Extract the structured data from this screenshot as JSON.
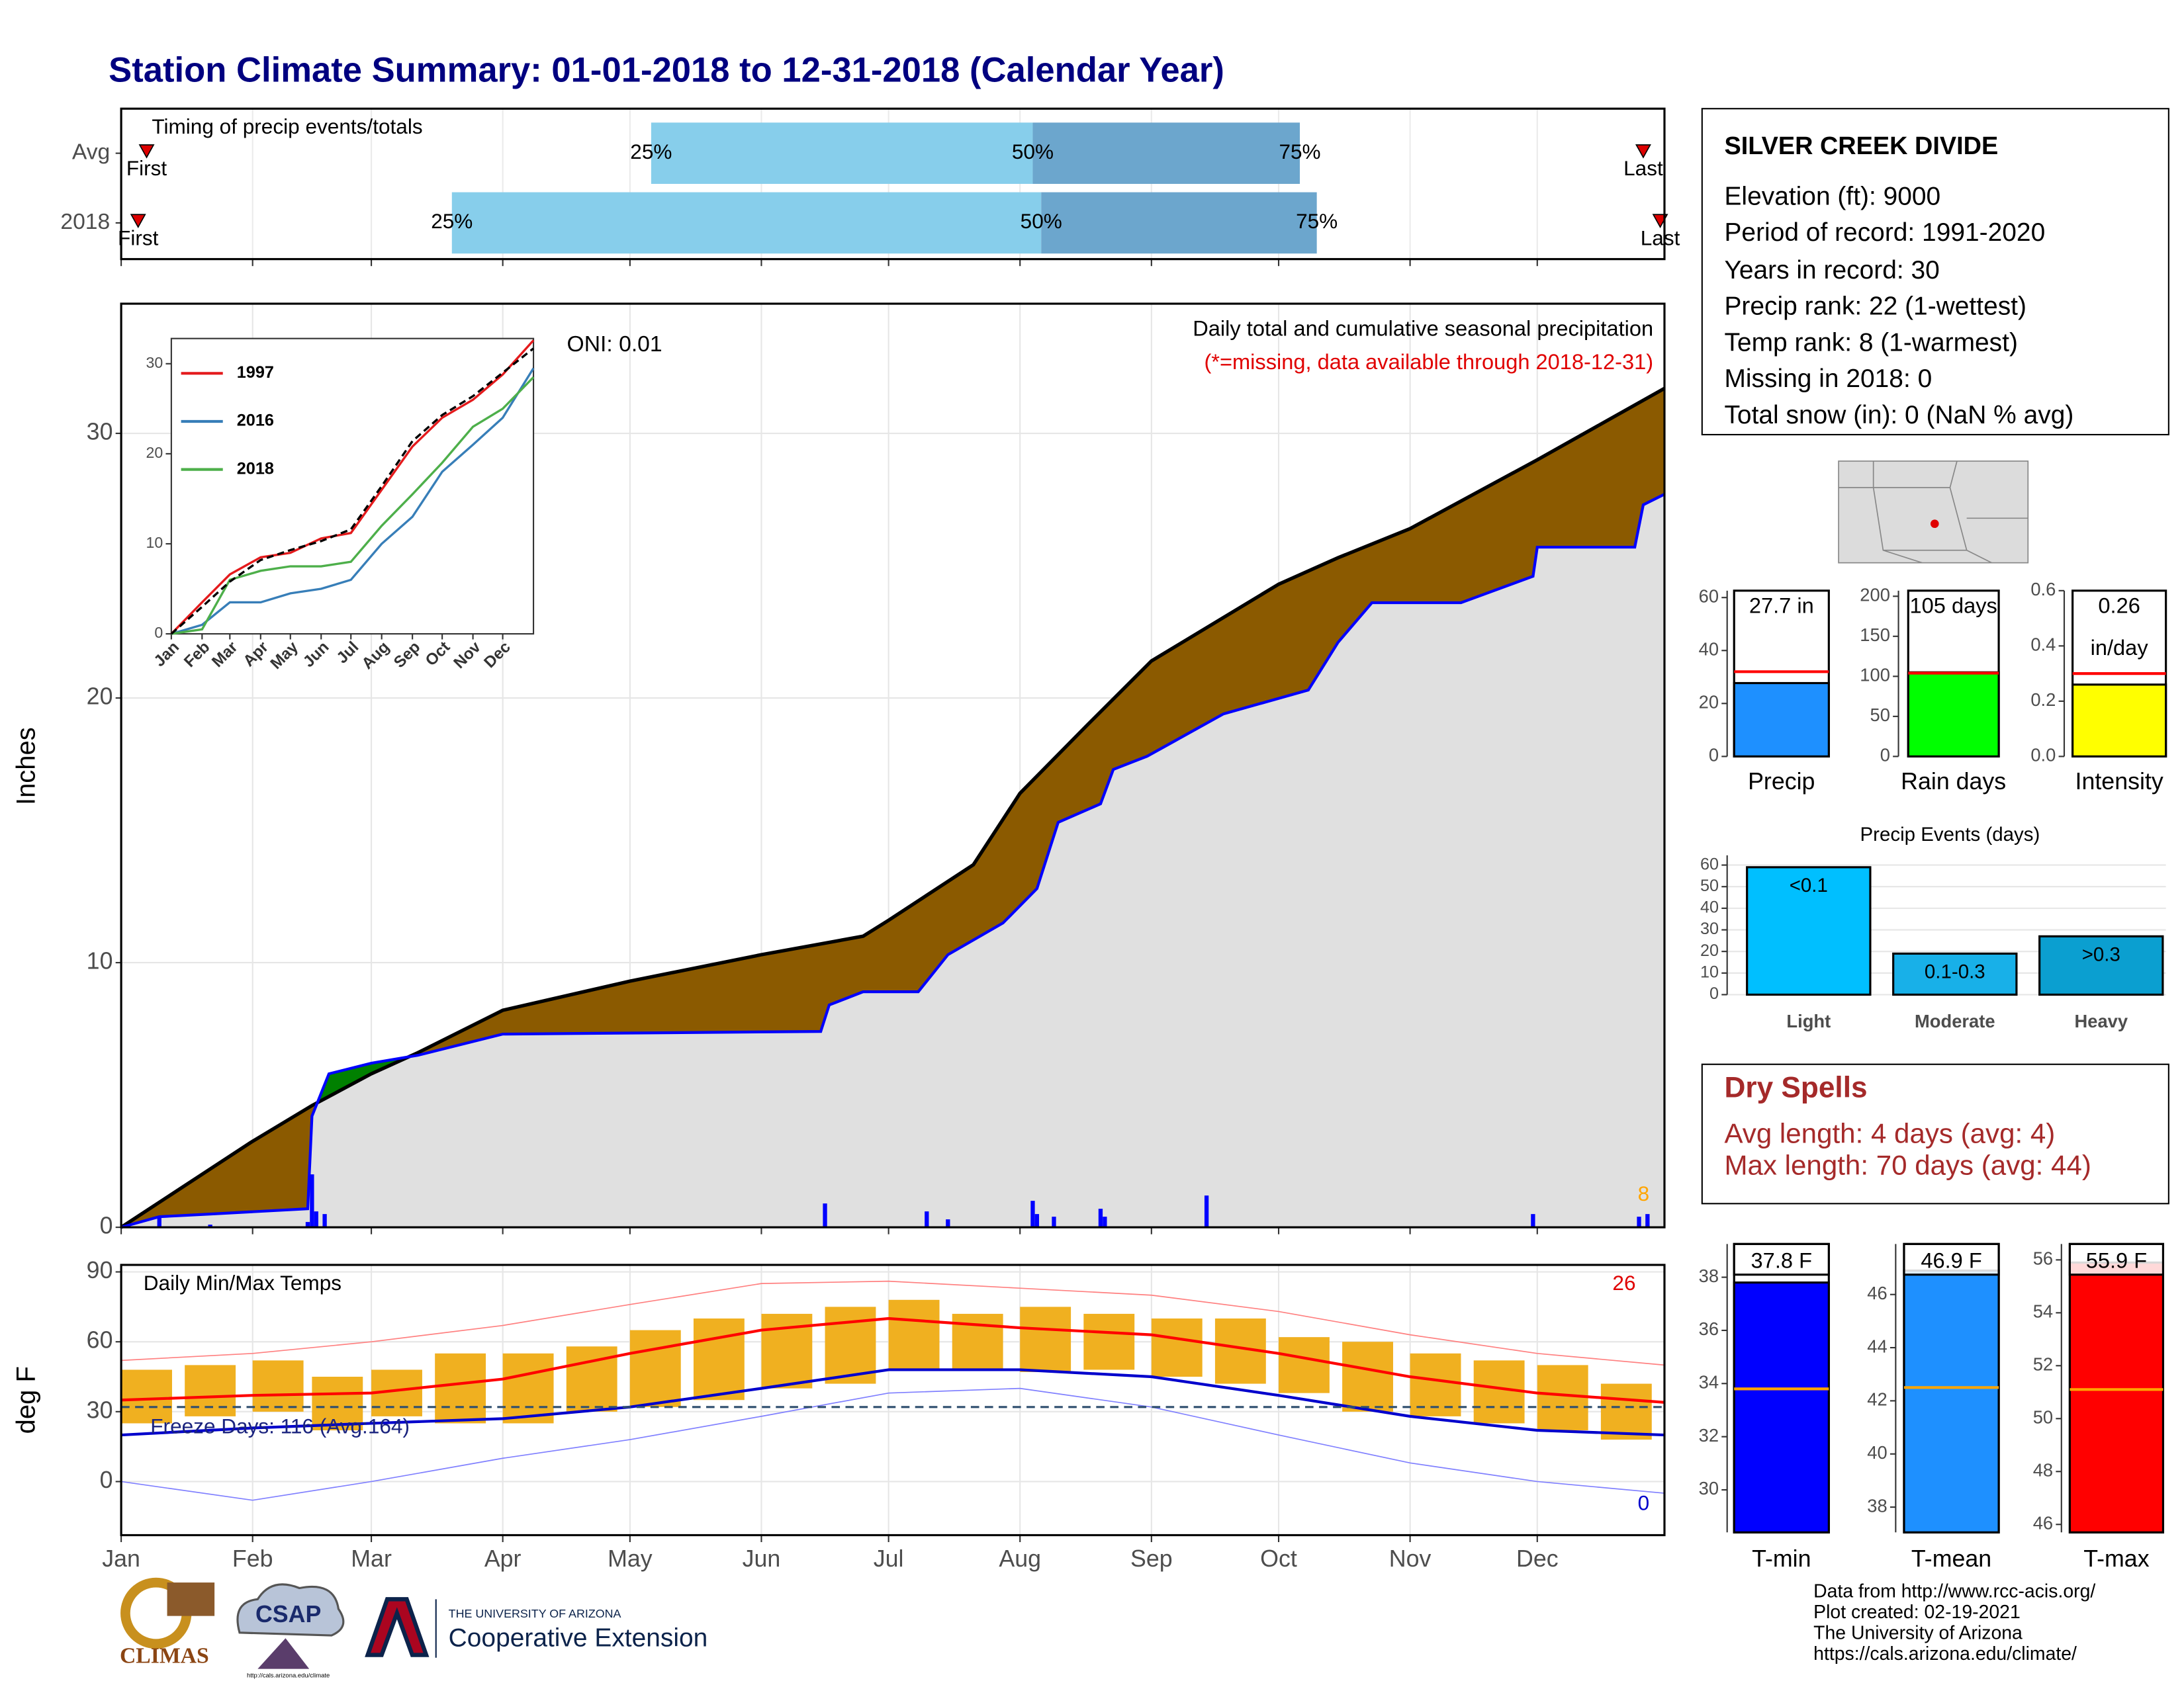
{
  "title": "Station Climate Summary: 01-01-2018 to 12-31-2018 (Calendar Year)",
  "station": {
    "name": "SILVER CREEK DIVIDE",
    "lines": [
      "Elevation (ft): 9000",
      "Period of record: 1991-2020",
      "Years in record: 30",
      "Precip rank: 22 (1-wettest)",
      "Temp rank: 8 (1-warmest)",
      "Missing in 2018: 0",
      "Total snow (in): 0 (NaN % avg)"
    ]
  },
  "dry_spells": {
    "title": "Dry Spells",
    "lines": [
      "Avg length: 4 days (avg: 4)",
      "Max length: 70 days (avg: 44)"
    ]
  },
  "footer": [
    "Data from http://www.rcc-acis.org/",
    "Plot created: 02-19-2021",
    "The University of Arizona",
    "https://cals.arizona.edu/climate/"
  ],
  "logos": {
    "climas": "CLIMAS",
    "csap": "CSAP",
    "csap_url": "http://cals.arizona.edu/climate",
    "ua": "THE UNIVERSITY OF ARIZONA",
    "coop": "Cooperative Extension"
  },
  "chart_data": [
    {
      "type": "timeline",
      "title": "Timing of precip events/totals",
      "markers": [
        "First",
        "25%",
        "50%",
        "75%",
        "Last"
      ],
      "colors": [
        "#87ceeb",
        "#6ca6cd"
      ],
      "marker_color": "#dd0000",
      "series": [
        {
          "name": "Avg",
          "values": [
            6,
            125,
            215,
            278,
            359
          ]
        },
        {
          "name": "2018",
          "values": [
            4,
            78,
            217,
            282,
            363
          ]
        }
      ],
      "xlim": [
        0,
        364
      ],
      "xticks": [
        0,
        31,
        59,
        90,
        120,
        151,
        181,
        212,
        243,
        273,
        304,
        334
      ]
    },
    {
      "type": "area",
      "y_label": "Inches",
      "annotations": [
        "ONI: 0.01",
        "Daily total and cumulative seasonal precipitation",
        "(*=missing, data available through 2018-12-31)",
        "8"
      ],
      "xlim": [
        0,
        364
      ],
      "xticks": [
        0,
        31,
        59,
        90,
        120,
        151,
        181,
        212,
        243,
        273,
        304,
        334
      ],
      "ylim": [
        0,
        34.9
      ],
      "yticks": [
        0,
        10,
        20,
        30
      ],
      "grid": true,
      "above_color": "#8b5a00",
      "below_color": "#008000",
      "fill_color": "#e0e0e0",
      "series": [
        {
          "color": "#000000",
          "x": [
            0,
            30.5,
            45,
            59,
            70,
            90,
            120,
            151,
            175,
            181,
            201,
            212,
            228,
            243,
            273,
            287,
            304,
            334,
            364
          ],
          "values": [
            0,
            3.2,
            4.6,
            5.8,
            6.6,
            8.2,
            9.3,
            10.3,
            11.0,
            11.6,
            13.7,
            16.4,
            19.0,
            21.4,
            24.3,
            25.3,
            26.4,
            29.0,
            31.7
          ]
        },
        {
          "color": "#0000ff",
          "x": [
            0,
            9,
            21,
            44,
            45,
            49,
            59,
            70,
            90,
            165,
            167,
            175,
            188,
            195,
            208,
            216,
            221,
            231,
            234,
            242,
            260,
            280,
            287,
            295,
            316,
            333,
            334,
            357,
            359,
            364
          ],
          "values": [
            0,
            0.4,
            0.5,
            0.7,
            4.2,
            5.8,
            6.2,
            6.5,
            7.3,
            7.4,
            8.4,
            8.9,
            8.9,
            10.3,
            11.5,
            12.8,
            15.3,
            16.0,
            17.3,
            17.8,
            19.4,
            20.3,
            22.1,
            23.6,
            23.6,
            24.6,
            25.7,
            25.7,
            27.3,
            27.7
          ]
        }
      ],
      "daily": {
        "color": "#0000ff",
        "x": [
          9,
          21,
          44,
          45,
          46,
          48,
          166,
          190,
          195,
          215,
          216,
          220,
          231,
          232,
          256,
          333,
          358,
          360
        ],
        "values": [
          0.4,
          0.1,
          0.2,
          2.0,
          0.6,
          0.5,
          0.9,
          0.6,
          0.3,
          1.0,
          0.5,
          0.4,
          0.7,
          0.4,
          1.2,
          0.5,
          0.4,
          0.5
        ]
      }
    },
    {
      "type": "line",
      "xlim": [
        0,
        365
      ],
      "xticks": [
        {
          "value": 0,
          "label": "Jan"
        },
        {
          "value": 31,
          "label": "Feb"
        },
        {
          "value": 59,
          "label": "Mar"
        },
        {
          "value": 90,
          "label": "Apr"
        },
        {
          "value": 120,
          "label": "May"
        },
        {
          "value": 151,
          "label": "Jun"
        },
        {
          "value": 181,
          "label": "Jul"
        },
        {
          "value": 212,
          "label": "Aug"
        },
        {
          "value": 243,
          "label": "Sep"
        },
        {
          "value": 273,
          "label": "Oct"
        },
        {
          "value": 304,
          "label": "Nov"
        },
        {
          "value": 334,
          "label": "Dec"
        }
      ],
      "ylim": [
        0,
        32.8
      ],
      "yticks": [
        0,
        10,
        20,
        30
      ],
      "x": [
        0,
        31,
        59,
        90,
        120,
        151,
        181,
        212,
        243,
        273,
        304,
        334,
        365
      ],
      "series": [
        {
          "name": "1997",
          "color": "#e41a1c",
          "values": [
            0,
            3.5,
            6.6,
            8.5,
            9,
            10.6,
            11.2,
            16,
            20.8,
            24,
            26,
            28.8,
            32.6
          ]
        },
        {
          "name": "2016",
          "color": "#377eb8",
          "values": [
            0,
            1,
            3.5,
            3.5,
            4.5,
            5,
            6,
            10,
            13,
            18,
            21,
            24,
            29.5
          ]
        },
        {
          "name": "2018",
          "color": "#4daf4a",
          "values": [
            0,
            0.5,
            6,
            7,
            7.5,
            7.5,
            8,
            12,
            15.5,
            19,
            23,
            25,
            28.5
          ]
        },
        {
          "color": "#000000",
          "dashed": true,
          "values": [
            0,
            3,
            5.8,
            8.2,
            9.3,
            10.3,
            11.6,
            16.4,
            21.4,
            24.3,
            26.4,
            29,
            31.7
          ]
        }
      ]
    },
    {
      "type": "range",
      "title": "Daily Min/Max Temps",
      "y_label": "deg F",
      "annotations": [
        "Freeze Days: 116 (Avg:164)",
        "26",
        "0"
      ],
      "xlim": [
        0,
        364
      ],
      "xticks": [
        {
          "value": 0,
          "label": "Jan"
        },
        {
          "value": 31,
          "label": "Feb"
        },
        {
          "value": 59,
          "label": "Mar"
        },
        {
          "value": 90,
          "label": "Apr"
        },
        {
          "value": 120,
          "label": "May"
        },
        {
          "value": 151,
          "label": "Jun"
        },
        {
          "value": 181,
          "label": "Jul"
        },
        {
          "value": 212,
          "label": "Aug"
        },
        {
          "value": 243,
          "label": "Sep"
        },
        {
          "value": 273,
          "label": "Oct"
        },
        {
          "value": 304,
          "label": "Nov"
        },
        {
          "value": 334,
          "label": "Dec"
        }
      ],
      "ylim": [
        -23,
        93
      ],
      "yticks": [
        0,
        30,
        60,
        90
      ],
      "grid": true,
      "freeze_line": 32,
      "x": [
        0,
        31,
        59,
        90,
        120,
        151,
        181,
        212,
        243,
        273,
        304,
        334,
        364
      ],
      "series": [
        {
          "color": "#ff8080",
          "values": [
            52,
            55,
            60,
            67,
            76,
            85,
            86,
            83,
            80,
            73,
            63,
            55,
            50
          ]
        },
        {
          "color": "#ff0000",
          "values": [
            35,
            37,
            38,
            44,
            55,
            65,
            70,
            66,
            63,
            55,
            45,
            38,
            34
          ]
        },
        {
          "color": "#0000cc",
          "values": [
            20,
            23,
            25,
            27,
            32,
            40,
            48,
            48,
            45,
            37,
            28,
            22,
            20
          ]
        },
        {
          "color": "#8080ff",
          "values": [
            0,
            -8,
            0,
            10,
            18,
            28,
            38,
            40,
            32,
            20,
            8,
            0,
            -5
          ]
        }
      ],
      "bars": {
        "color": "#f0b020",
        "x": [
          0,
          15,
          31,
          45,
          59,
          74,
          90,
          105,
          120,
          135,
          151,
          166,
          181,
          196,
          212,
          227,
          243,
          258,
          273,
          288,
          304,
          319,
          334,
          349
        ],
        "low": [
          25,
          28,
          30,
          22,
          28,
          25,
          25,
          30,
          32,
          35,
          40,
          42,
          48,
          48,
          47,
          48,
          45,
          42,
          38,
          30,
          28,
          25,
          22,
          18
        ],
        "high": [
          48,
          50,
          52,
          45,
          48,
          55,
          55,
          58,
          65,
          70,
          72,
          75,
          78,
          72,
          75,
          72,
          70,
          70,
          62,
          60,
          55,
          52,
          50,
          42
        ]
      }
    },
    {
      "type": "gauge",
      "categories": [
        "Precip"
      ],
      "values": [
        27.7
      ],
      "value_labels": [
        "27.7 in"
      ],
      "average": 32,
      "color": "#1e90ff",
      "avg_color": "#ff0000",
      "ylim": [
        0,
        62.6
      ],
      "yticks": [
        0,
        20,
        40,
        60
      ]
    },
    {
      "type": "gauge",
      "categories": [
        "Rain days"
      ],
      "values": [
        105
      ],
      "value_labels": [
        "105 days"
      ],
      "average": 104,
      "color": "#00ff00",
      "avg_color": "#ff0000",
      "ylim": [
        0,
        207
      ],
      "yticks": [
        0,
        50,
        100,
        150,
        200
      ]
    },
    {
      "type": "gauge",
      "categories": [
        "Intensity"
      ],
      "values": [
        0.26
      ],
      "value_labels": [
        "0.26"
      ],
      "unit_label": "in/day",
      "average": 0.3,
      "color": "#ffff00",
      "avg_color": "#ff0000",
      "ylim": [
        0,
        0.6
      ],
      "yticks": [
        {
          "value": 0,
          "label": "0.0"
        },
        0.2,
        0.4,
        0.6
      ]
    },
    {
      "type": "bar",
      "title": "Precip Events (days)",
      "categories": [
        "Light",
        "Moderate",
        "Heavy"
      ],
      "values": [
        59,
        19,
        27
      ],
      "bin_labels": [
        "<0.1",
        "0.1-0.3",
        ">0.3"
      ],
      "colors": [
        "#00bfff",
        "#18b0e8",
        "#0b9fd0"
      ],
      "ylim": [
        0,
        64.5
      ],
      "yticks": [
        0,
        10,
        20,
        30,
        40,
        50,
        60
      ],
      "grid": true
    },
    {
      "type": "gauge",
      "categories": [
        "T-min"
      ],
      "values": [
        37.8
      ],
      "value_labels": [
        "37.8 F"
      ],
      "average": 33.8,
      "color": "#0000ff",
      "avg_color": "#ffa500",
      "ylim": [
        28.4,
        39.25
      ],
      "yticks": [
        30,
        32,
        34,
        36,
        38
      ]
    },
    {
      "type": "gauge",
      "categories": [
        "T-mean"
      ],
      "values": [
        46.9
      ],
      "value_labels": [
        "46.9 F"
      ],
      "average": 42.5,
      "color": "#1e90ff",
      "avg_color": "#ffa500",
      "ylim": [
        37.05,
        47.9
      ],
      "yticks": [
        38,
        40,
        42,
        44,
        46
      ]
    },
    {
      "type": "gauge",
      "categories": [
        "T-max"
      ],
      "values": [
        55.9
      ],
      "value_labels": [
        "55.9 F"
      ],
      "average": 51.1,
      "color": "#ff0000",
      "avg_color": "#ffa500",
      "ylim": [
        45.7,
        56.6
      ],
      "yticks": [
        46,
        48,
        50,
        52,
        54,
        56
      ]
    }
  ]
}
